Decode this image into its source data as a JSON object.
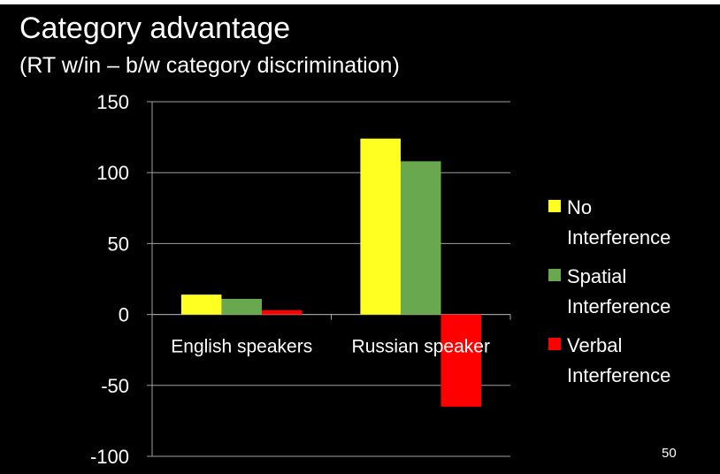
{
  "slide": {
    "title": "Category advantage",
    "subtitle": "(RT w/in – b/w category discrimination)",
    "page_number": "50"
  },
  "chart_data": {
    "type": "bar",
    "categories": [
      "English speakers",
      "Russian speaker"
    ],
    "series": [
      {
        "name": "No Interference",
        "legend_lines": [
          "No",
          "Interference"
        ],
        "color": "#FFFF22",
        "values": [
          14,
          124
        ]
      },
      {
        "name": "Spatial Interference",
        "legend_lines": [
          "Spatial",
          "Interference"
        ],
        "color": "#6AA84F",
        "values": [
          11,
          108
        ]
      },
      {
        "name": "Verbal Interference",
        "legend_lines": [
          "Verbal",
          "Interference"
        ],
        "color": "#FF0000",
        "values": [
          3,
          -65
        ]
      }
    ],
    "ylim": [
      -100,
      150
    ],
    "yticks": [
      150,
      100,
      50,
      0,
      -50,
      -100
    ],
    "grid": true,
    "legend_position": "right",
    "axis_color": "#A0A0A0",
    "text_color": "#FFFFFF"
  }
}
